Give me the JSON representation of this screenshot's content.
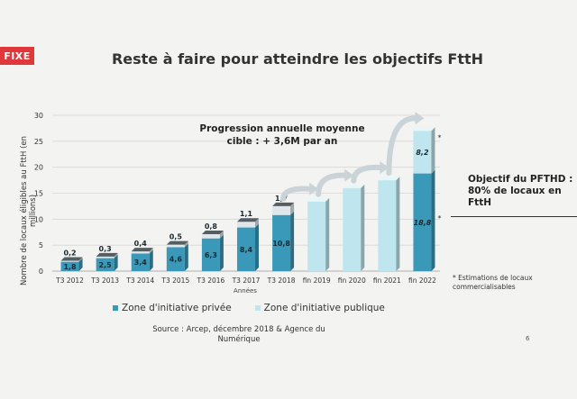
{
  "tag": "FIXE",
  "page_number": "6",
  "objective_text": "Objectif du PFTHD : 80% de locaux en FttH",
  "estimation_note": "* Estimations de locaux commercialisables",
  "source": "Source : Arcep, décembre 2018 & Agence du Numérique",
  "colors": {
    "private": "#3a98b8",
    "public": "#bfe6ee",
    "arrow": "#c9d3d8",
    "tag": "#e0373a"
  },
  "chart_data": {
    "type": "bar",
    "stacked": true,
    "title": "Reste à faire pour atteindre les objectifs FttH",
    "annotation": "Progression annuelle moyenne cible : + 3,6M par an",
    "ylabel": "Nombre de locaux éligibles au FttH (en millions)",
    "xlabel": "Années",
    "ylim": [
      0,
      30
    ],
    "yticks": [
      "0",
      "5",
      "10",
      "15",
      "20",
      "25",
      "30"
    ],
    "categories": [
      "T3 2012",
      "T3 2013",
      "T3 2014",
      "T3 2015",
      "T3 2016",
      "T3 2017",
      "T3 2018",
      "fin 2019",
      "fin 2020",
      "fin 2021",
      "fin 2022"
    ],
    "series": [
      {
        "name": "Zone d'initiative privée",
        "values": [
          1.8,
          2.5,
          3.4,
          4.6,
          6.3,
          8.4,
          10.8,
          null,
          null,
          null,
          18.8
        ]
      },
      {
        "name": "Zone d'initiative publique",
        "values": [
          0.2,
          0.3,
          0.4,
          0.5,
          0.8,
          1.1,
          1.7,
          null,
          null,
          null,
          8.2
        ]
      }
    ],
    "projected_totals": [
      null,
      null,
      null,
      null,
      null,
      null,
      null,
      13.4,
      16.0,
      17.5,
      27.0
    ],
    "value_labels_private": [
      "1,8",
      "2,5",
      "3,4",
      "4,6",
      "6,3",
      "8,4",
      "10,8",
      "",
      "",
      "",
      "18,8"
    ],
    "value_labels_public": [
      "0,2",
      "0,3",
      "0,4",
      "0,5",
      "0,8",
      "1,1",
      "1,7",
      "",
      "",
      "",
      "8,2"
    ],
    "estimation_marks": [
      "*",
      "*"
    ]
  }
}
